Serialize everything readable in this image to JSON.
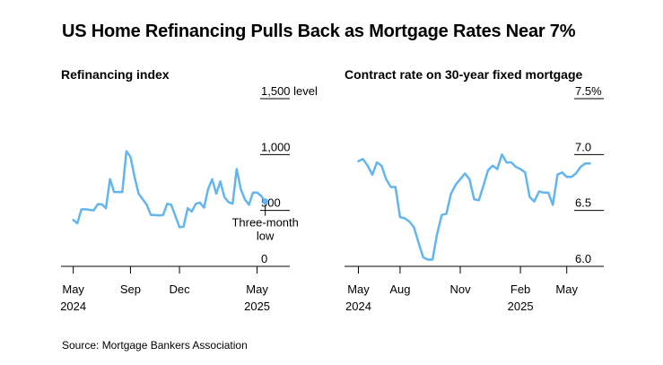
{
  "title": "US Home Refinancing Pulls Back as Mortgage Rates Near 7%",
  "source": "Source: Mortgage Bankers Association",
  "colors": {
    "line": "#64b5ef",
    "text": "#000000",
    "axis": "#000000",
    "marker": "#64b5ef"
  },
  "chart_data": [
    {
      "type": "line",
      "title": "Refinancing index",
      "ylabel": "level",
      "ylim": [
        0,
        1500
      ],
      "yticks": [
        {
          "v": 1500,
          "label": "1,500 level"
        },
        {
          "v": 1000,
          "label": "1,000"
        },
        {
          "v": 500,
          "label": "500"
        },
        {
          "v": 0,
          "label": "0"
        }
      ],
      "xlim": [
        0,
        56
      ],
      "xticks": [
        {
          "v": 3,
          "label": "May",
          "sub": "2024"
        },
        {
          "v": 17,
          "label": "Sep",
          "sub": ""
        },
        {
          "v": 29,
          "label": "Dec",
          "sub": ""
        },
        {
          "v": 48,
          "label": "May",
          "sub": "2025"
        }
      ],
      "grid": false,
      "annotation": {
        "lines": [
          "Three-month",
          "low"
        ],
        "index": 50
      },
      "series": [
        {
          "x": [
            3,
            4,
            5,
            6,
            7,
            8,
            9,
            10,
            11,
            12,
            13,
            14,
            15,
            16,
            17,
            18,
            19,
            20,
            21,
            22,
            23,
            24,
            25,
            26,
            27,
            28,
            29,
            30,
            31,
            32,
            33,
            34,
            35,
            36,
            37,
            38,
            39,
            40,
            41,
            42,
            43,
            44,
            45,
            46,
            47,
            48,
            49,
            50
          ],
          "values": [
            415,
            385,
            510,
            510,
            505,
            500,
            555,
            555,
            520,
            780,
            665,
            665,
            665,
            1030,
            980,
            800,
            650,
            600,
            550,
            460,
            460,
            455,
            460,
            560,
            550,
            450,
            350,
            355,
            520,
            490,
            560,
            570,
            525,
            690,
            780,
            650,
            760,
            620,
            575,
            560,
            870,
            690,
            600,
            550,
            660,
            660,
            630,
            580
          ]
        }
      ]
    },
    {
      "type": "line",
      "title": "Contract rate on 30-year fixed mortgage",
      "ylabel": "%",
      "ylim": [
        6.0,
        7.5
      ],
      "yticks": [
        {
          "v": 7.5,
          "label": "7.5%"
        },
        {
          "v": 7.0,
          "label": "7.0"
        },
        {
          "v": 6.5,
          "label": "6.5"
        },
        {
          "v": 6.0,
          "label": "6.0"
        }
      ],
      "xlim": [
        0,
        56
      ],
      "xticks": [
        {
          "v": 3,
          "label": "May",
          "sub": "2024"
        },
        {
          "v": 12,
          "label": "Aug",
          "sub": ""
        },
        {
          "v": 25,
          "label": "Nov",
          "sub": ""
        },
        {
          "v": 38,
          "label": "Feb",
          "sub": "2025"
        },
        {
          "v": 48,
          "label": "May",
          "sub": ""
        }
      ],
      "grid": false,
      "series": [
        {
          "x": [
            3,
            4,
            5,
            6,
            7,
            8,
            9,
            10,
            11,
            12,
            13,
            14,
            15,
            16,
            17,
            18,
            19,
            20,
            21,
            22,
            23,
            24,
            25,
            26,
            27,
            28,
            29,
            30,
            31,
            32,
            33,
            34,
            35,
            36,
            37,
            38,
            39,
            40,
            41,
            42,
            43,
            44,
            45,
            46,
            47,
            48,
            49,
            50,
            51,
            52,
            53
          ],
          "values": [
            6.94,
            6.96,
            6.9,
            6.82,
            6.93,
            6.9,
            6.78,
            6.71,
            6.71,
            6.44,
            6.43,
            6.4,
            6.35,
            6.21,
            6.08,
            6.06,
            6.06,
            6.29,
            6.46,
            6.47,
            6.65,
            6.73,
            6.78,
            6.83,
            6.78,
            6.6,
            6.59,
            6.72,
            6.86,
            6.9,
            6.87,
            7.0,
            6.93,
            6.93,
            6.89,
            6.87,
            6.84,
            6.62,
            6.58,
            6.67,
            6.66,
            6.66,
            6.55,
            6.82,
            6.84,
            6.8,
            6.8,
            6.83,
            6.89,
            6.92,
            6.92
          ]
        }
      ]
    }
  ]
}
